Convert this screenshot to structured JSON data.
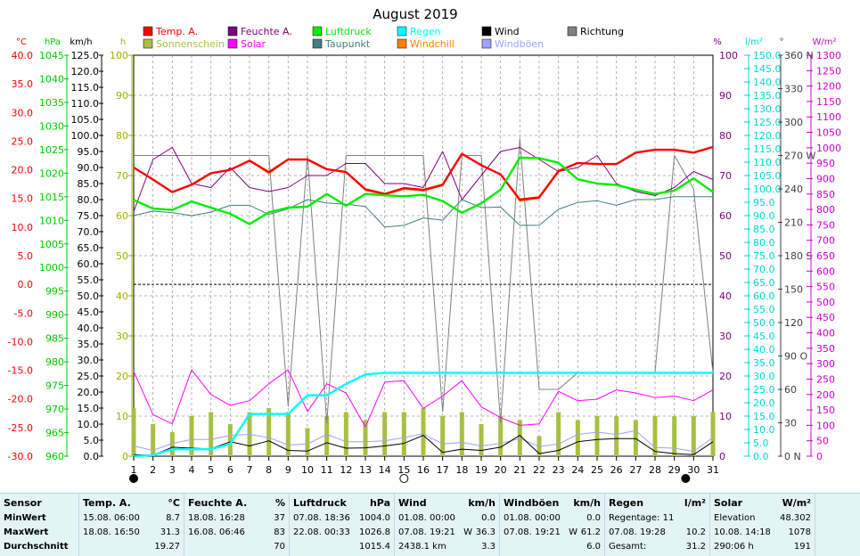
{
  "title": "August 2019",
  "axes": {
    "celsius": {
      "unit": "°C",
      "ticks": [
        "40.0",
        "35.0",
        "30.0",
        "25.0",
        "20.0",
        "15.0",
        "10.0",
        "5.0",
        "0.0",
        "-5.0",
        "-10.0",
        "-15.0",
        "-20.0",
        "-25.0",
        "-30.0"
      ],
      "color": "#ff0000"
    },
    "hpa": {
      "unit": "hPa",
      "ticks": [
        "1045",
        "1040",
        "1035",
        "1030",
        "1025",
        "1020",
        "1015",
        "1010",
        "1005",
        "1000",
        "995",
        "990",
        "985",
        "980",
        "975",
        "970",
        "965",
        "960"
      ],
      "color": "#00cc00"
    },
    "kmh": {
      "unit": "km/h",
      "ticks": [
        "125.0",
        "120.0",
        "115.0",
        "110.0",
        "105.0",
        "100.0",
        "95.0",
        "90.0",
        "85.0",
        "80.0",
        "75.0",
        "70.0",
        "65.0",
        "60.0",
        "55.0",
        "50.0",
        "45.0",
        "40.0",
        "35.0",
        "30.0",
        "25.0",
        "20.0",
        "15.0",
        "10.0",
        "5.0",
        "0.0"
      ],
      "color": "#000000"
    },
    "hours": {
      "unit": "h",
      "ticks": [
        "100",
        "90",
        "80",
        "70",
        "60",
        "50",
        "40",
        "30",
        "20",
        "10",
        "0"
      ],
      "color": "#a0b000"
    },
    "percent": {
      "unit": "%",
      "ticks": [
        "100",
        "90",
        "80",
        "70",
        "60",
        "50",
        "40",
        "30",
        "20",
        "10",
        "0"
      ],
      "color": "#800080"
    },
    "rain": {
      "unit": "l/m²",
      "ticks": [
        "150.0",
        "145.0",
        "140.0",
        "135.0",
        "130.0",
        "125.0",
        "120.0",
        "115.0",
        "110.0",
        "105.0",
        "100.0",
        "95.0",
        "90.0",
        "85.0",
        "80.0",
        "75.0",
        "70.0",
        "65.0",
        "60.0",
        "55.0",
        "50.0",
        "45.0",
        "40.0",
        "35.0",
        "30.0",
        "25.0",
        "20.0",
        "15.0",
        "10.0",
        "5.0",
        "0.0"
      ],
      "color": "#00d8d8"
    },
    "direction": {
      "unit": "°",
      "ticks": [
        "360 N",
        "330",
        "300",
        "270 W",
        "240",
        "210",
        "180 S",
        "150",
        "120",
        "90 O",
        "60",
        "30",
        "0 N"
      ],
      "color": "#404040"
    },
    "solar": {
      "unit": "W/m²",
      "ticks": [
        "1300",
        "1250",
        "1200",
        "1150",
        "1100",
        "1050",
        "1000",
        "950",
        "900",
        "850",
        "800",
        "750",
        "700",
        "650",
        "600",
        "550",
        "500",
        "450",
        "400",
        "350",
        "300",
        "250",
        "200",
        "150",
        "100",
        "50",
        "0"
      ],
      "color": "#d000d0"
    }
  },
  "legend": [
    {
      "label": "Temp. A.",
      "color": "#ff0000"
    },
    {
      "label": "Feuchte A.",
      "color": "#800080"
    },
    {
      "label": "Luftdruck",
      "color": "#00ee00"
    },
    {
      "label": "Regen",
      "color": "#00ffff"
    },
    {
      "label": "Wind",
      "color": "#000000"
    },
    {
      "label": "Richtung",
      "color": "#808080"
    },
    {
      "label": "Sonnenschein",
      "color": "#a8c040"
    },
    {
      "label": "Solar",
      "color": "#ff00ff"
    },
    {
      "label": "Taupunkt",
      "color": "#408080"
    },
    {
      "label": "Windchill",
      "color": "#ff8000"
    },
    {
      "label": "Windböen",
      "color": "#a0a0ff"
    }
  ],
  "chart_data": {
    "type": "line",
    "title": "August 2019",
    "x": [
      1,
      2,
      3,
      4,
      5,
      6,
      7,
      8,
      9,
      10,
      11,
      12,
      13,
      14,
      15,
      16,
      17,
      18,
      19,
      20,
      21,
      22,
      23,
      24,
      25,
      26,
      27,
      28,
      29,
      30,
      31
    ],
    "x_ticks": [
      "1",
      "2",
      "3",
      "4",
      "5",
      "6",
      "7",
      "8",
      "9",
      "10",
      "11",
      "12",
      "13",
      "14",
      "15",
      "16",
      "17",
      "18",
      "19",
      "20",
      "21",
      "22",
      "23",
      "24",
      "25",
      "26",
      "27",
      "28",
      "29",
      "30",
      "31"
    ],
    "series": [
      {
        "name": "Temp. A.",
        "unit": "°C",
        "color": "#ff0000",
        "values": [
          20.4,
          18.3,
          16.1,
          17.4,
          19.4,
          20.0,
          21.6,
          19.6,
          21.8,
          21.8,
          20.1,
          19.6,
          16.6,
          15.8,
          16.8,
          16.5,
          17.4,
          22.8,
          20.8,
          19.2,
          14.8,
          15.2,
          19.8,
          21.2,
          21.0,
          21.0,
          23.0,
          23.5,
          23.5,
          23.0,
          24.0
        ]
      },
      {
        "name": "Windchill",
        "unit": "°C",
        "color": "#ff8000",
        "values": [
          20.4,
          18.3,
          16.1,
          17.4,
          19.4,
          20.0,
          21.6,
          19.3,
          21.8,
          21.8,
          20.1,
          19.6,
          16.4,
          15.6,
          16.6,
          16.3,
          17.2,
          22.8,
          20.8,
          19.2,
          14.5,
          15.0,
          19.6,
          21.2,
          21.0,
          21.0,
          23.0,
          23.5,
          23.5,
          23.0,
          24.0
        ]
      },
      {
        "name": "Feuchte A.",
        "unit": "%",
        "color": "#800080",
        "values": [
          61,
          74,
          77,
          68,
          67,
          72,
          67,
          66,
          67,
          70,
          70,
          73,
          73,
          68,
          68,
          67,
          76,
          64,
          70,
          76,
          77,
          74,
          71,
          72,
          75,
          68,
          66,
          65,
          67,
          71,
          69
        ]
      },
      {
        "name": "Luftdruck",
        "unit": "hPa",
        "color": "#00ee00",
        "values": [
          1014.3,
          1012.5,
          1012.2,
          1014.0,
          1012.7,
          1011.4,
          1009.2,
          1011.7,
          1012.7,
          1012.9,
          1015.6,
          1013.1,
          1015.6,
          1015.3,
          1015.1,
          1015.4,
          1014.1,
          1011.6,
          1013.6,
          1016.5,
          1023.3,
          1023.2,
          1022.2,
          1018.7,
          1017.8,
          1017.5,
          1016.5,
          1015.6,
          1016.3,
          1018.9,
          1016.0
        ]
      },
      {
        "name": "Taupunkt",
        "unit": "°C",
        "color": "#408080",
        "values": [
          12.0,
          12.8,
          12.5,
          12.0,
          12.6,
          13.8,
          13.8,
          12.2,
          13.2,
          14.8,
          14.2,
          14.0,
          13.6,
          10.0,
          10.3,
          11.6,
          11.2,
          14.8,
          13.4,
          13.5,
          10.3,
          10.3,
          13.1,
          14.3,
          14.6,
          13.8,
          14.8,
          14.8,
          15.3,
          15.3,
          15.3
        ]
      },
      {
        "name": "Regen",
        "unit": "l/m²",
        "color": "#00ffff",
        "values": [
          0.0,
          0.4,
          2.6,
          2.6,
          2.6,
          4.6,
          15.8,
          15.8,
          15.8,
          22.8,
          22.8,
          27.0,
          30.6,
          31.2,
          31.2,
          31.2,
          31.2,
          31.2,
          31.2,
          31.2,
          31.2,
          31.2,
          31.2,
          31.2,
          31.2,
          31.2,
          31.2,
          31.2,
          31.2,
          31.2,
          31.2
        ]
      },
      {
        "name": "Wind",
        "unit": "km/h",
        "color": "#000000",
        "values": [
          0.5,
          0.3,
          2.8,
          2.5,
          2.3,
          4.5,
          3.2,
          4.8,
          1.8,
          1.6,
          4.2,
          2.5,
          2.6,
          3.2,
          4.0,
          6.5,
          1.2,
          2.2,
          1.8,
          2.8,
          6.5,
          0.8,
          1.8,
          4.5,
          5.2,
          5.5,
          5.5,
          1.5,
          0.8,
          0.5,
          4.5
        ]
      },
      {
        "name": "Windböen",
        "unit": "km/h",
        "color": "#a0a0ff",
        "values": [
          3.2,
          1.8,
          4.0,
          5.2,
          5.2,
          6.5,
          6.8,
          5.8,
          3.5,
          3.8,
          6.8,
          4.5,
          4.5,
          4.8,
          5.8,
          7.0,
          3.8,
          4.3,
          3.2,
          4.0,
          5.5,
          3.0,
          3.8,
          6.8,
          7.5,
          6.8,
          8.0,
          2.7,
          2.5,
          1.5,
          5.8
        ]
      },
      {
        "name": "Richtung",
        "unit": "°",
        "color": "#808080",
        "values": [
          270,
          270,
          270,
          270,
          270,
          270,
          270,
          270,
          45,
          270,
          30,
          270,
          270,
          270,
          270,
          270,
          40,
          270,
          270,
          30,
          285,
          60,
          60,
          75,
          75,
          75,
          75,
          75,
          270,
          240,
          75
        ]
      },
      {
        "name": "Solar",
        "unit": "W/m²",
        "color": "#ff00ff",
        "values": [
          275,
          135,
          105,
          280,
          200,
          165,
          180,
          235,
          280,
          145,
          235,
          205,
          95,
          240,
          245,
          155,
          195,
          245,
          160,
          125,
          100,
          105,
          210,
          180,
          185,
          215,
          205,
          190,
          195,
          180,
          215
        ]
      },
      {
        "name": "Sonnenschein",
        "unit": "h",
        "type": "bar",
        "color": "#a8c040",
        "values": [
          12,
          8,
          6,
          10,
          11,
          8,
          11,
          12,
          11,
          7,
          10,
          11,
          9,
          11,
          11,
          12,
          10,
          11,
          8,
          10,
          9,
          5,
          11,
          9,
          10,
          10,
          9,
          10,
          10,
          10,
          11
        ]
      }
    ],
    "reference_lines": [
      {
        "axis": "°C",
        "value": 0
      }
    ],
    "moon_phases": [
      {
        "day": 1,
        "phase": "new"
      },
      {
        "day": 15,
        "phase": "full"
      },
      {
        "day": 30,
        "phase": "new"
      }
    ]
  },
  "stats": {
    "sensor": {
      "title": "Sensor",
      "rows": [
        "MinWert",
        "MaxWert",
        "Durchschnitt"
      ]
    },
    "temp": {
      "title": "Temp. A.",
      "unit": "°C",
      "min_time": "15.08.  06:00",
      "min": "8.7",
      "max_time": "18.08.  16:50",
      "max": "31.3",
      "avg": "19.27"
    },
    "humidity": {
      "title": "Feuchte A.",
      "unit": "%",
      "min_time": "18.08.  16:28",
      "min": "37",
      "max_time": "16.08.  06:46",
      "max": "83",
      "avg": "70"
    },
    "pressure": {
      "title": "Luftdruck",
      "unit": "hPa",
      "min_time": "07.08.  18:36",
      "min": "1004.0",
      "max_time": "22.08.  00:33",
      "max": "1026.8",
      "avg": "1015.4"
    },
    "wind": {
      "title": "Wind",
      "unit": "km/h",
      "min_time": "01.08.  00:00",
      "min": "0.0",
      "max_time": "07.08.  19:21",
      "max_dir": "W",
      "max": "36.3",
      "avg_extra": "2438.1 km",
      "avg": "3.3"
    },
    "gust": {
      "title": "Windböen",
      "unit": "km/h",
      "min_time": "01.08.  00:00",
      "min": "0.0",
      "max_time": "07.08.  19:21",
      "max_dir": "W",
      "max": "61.2",
      "avg": "6.0"
    },
    "rain": {
      "title": "Regen",
      "unit": "l/m²",
      "row1": "Regentage: 11",
      "max_time": "07.08.  19:28",
      "max": "10.2",
      "row3": "Gesamt:",
      "total": "31.2"
    },
    "solar": {
      "title": "Solar",
      "unit": "W/m²",
      "row1_label": "Elevation",
      "row1_val": "48.302",
      "max_time": "10.08.  14:18",
      "max": "1078",
      "row3_label": "290:06 h",
      "avg": "191"
    }
  }
}
